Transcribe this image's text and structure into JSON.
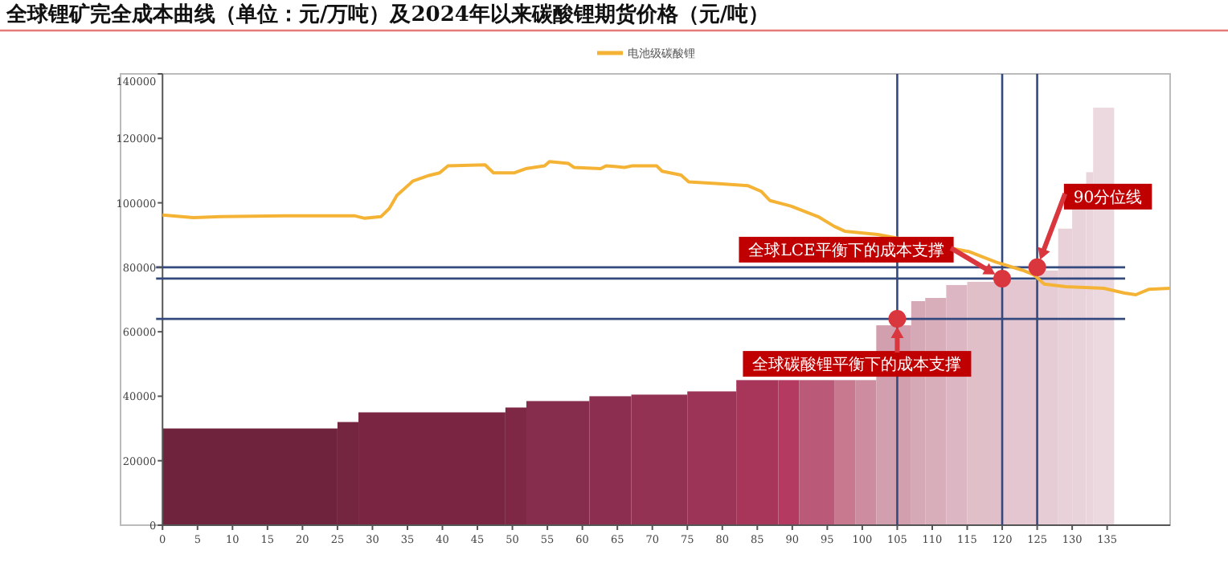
{
  "chart_data": {
    "type": "histogram",
    "title": "全球锂矿完全成本曲线（单位：元/万吨）及2024年以来碳酸锂期货价格（元/吨）",
    "xlim": [
      -6,
      144
    ],
    "xticks": [
      0,
      5,
      10,
      15,
      20,
      25,
      30,
      35,
      40,
      45,
      50,
      55,
      60,
      65,
      70,
      75,
      80,
      85,
      90,
      95,
      100,
      105,
      110,
      115,
      120,
      125,
      130,
      135
    ],
    "ylim": [
      0,
      140000
    ],
    "yticks": [
      0,
      20000,
      40000,
      60000,
      80000,
      100000,
      120000,
      140000
    ],
    "legend": "top",
    "grid": false,
    "series": [
      {
        "type": "histogram",
        "bins": [
          0,
          25,
          28,
          49,
          52,
          61,
          67,
          75,
          82,
          88,
          91,
          96,
          99,
          102,
          107,
          109,
          112,
          115,
          120,
          125,
          128,
          130,
          132,
          133,
          136
        ],
        "values": [
          30000,
          32000,
          35000,
          36500,
          38500,
          40000,
          40500,
          41500,
          45000,
          45000,
          45000,
          45000,
          45000,
          62000,
          69500,
          70500,
          74500,
          75500,
          76000,
          79000,
          92000,
          99500,
          109500,
          129500
        ],
        "colors": [
          "#6f233c",
          "#742540",
          "#7a2643",
          "#7e2846",
          "#862c4c",
          "#8c2e50",
          "#933253",
          "#9c3457",
          "#a8365b",
          "#b53a62",
          "#bb5a78",
          "#c8788f",
          "#cd8ca0",
          "#d29fae",
          "#d6a9b6",
          "#d8aebb",
          "#dcb6c2",
          "#e0bfc9",
          "#e3c6cf",
          "#e6cdd5",
          "#e8d1d8",
          "#e9d3da",
          "#ead5dc",
          "#ecd8df"
        ]
      },
      {
        "type": "line",
        "name": "电池级碳酸锂",
        "color": "#f5b335",
        "x": [
          0,
          4.4,
          8.3,
          17.4,
          27.4,
          28.9,
          31.2,
          32.4,
          33.5,
          35.8,
          38.1,
          39.6,
          40.8,
          46.1,
          47.3,
          50.3,
          51.9,
          54.6,
          55.3,
          58,
          58.8,
          62.6,
          63.4,
          66,
          67.2,
          70.6,
          71.4,
          74.1,
          75.2,
          79.1,
          83.7,
          85.6,
          86.8,
          89.8,
          93.7,
          96,
          97.5,
          102.2,
          115.2,
          119.1,
          122.9,
          124.5,
          126,
          129.1,
          134.5,
          137.5,
          139.1,
          141,
          144
        ],
        "values": [
          96200,
          95400,
          95700,
          96000,
          96000,
          95200,
          95700,
          98200,
          102300,
          106800,
          108500,
          109300,
          111500,
          111800,
          109300,
          109300,
          110600,
          111500,
          112800,
          112200,
          111000,
          110600,
          111500,
          111000,
          111500,
          111500,
          109800,
          108600,
          106500,
          106000,
          105300,
          103500,
          100700,
          99000,
          95700,
          92700,
          91200,
          90200,
          84900,
          81600,
          79100,
          77700,
          74800,
          74000,
          73500,
          72000,
          71500,
          73200,
          73500
        ]
      },
      {
        "type": "scatter",
        "color": "#d9363e",
        "marker": "circle",
        "x": [
          105,
          120,
          125
        ],
        "values": [
          64000,
          76500,
          80000
        ]
      }
    ],
    "ref_lines": [
      {
        "axis": "y",
        "value": 80000,
        "color": "#34497e"
      },
      {
        "axis": "y",
        "value": 76500,
        "color": "#34497e"
      },
      {
        "axis": "y",
        "value": 64000,
        "color": "#34497e"
      },
      {
        "axis": "x",
        "value": 105,
        "color": "#34497e"
      },
      {
        "axis": "x",
        "value": 120,
        "color": "#34497e"
      },
      {
        "axis": "x",
        "value": 125,
        "color": "#34497e"
      }
    ],
    "annotations": [
      "全球碳酸锂平衡下的成本支撑",
      "全球LCE平衡下的成本支撑",
      "90分位线"
    ]
  }
}
